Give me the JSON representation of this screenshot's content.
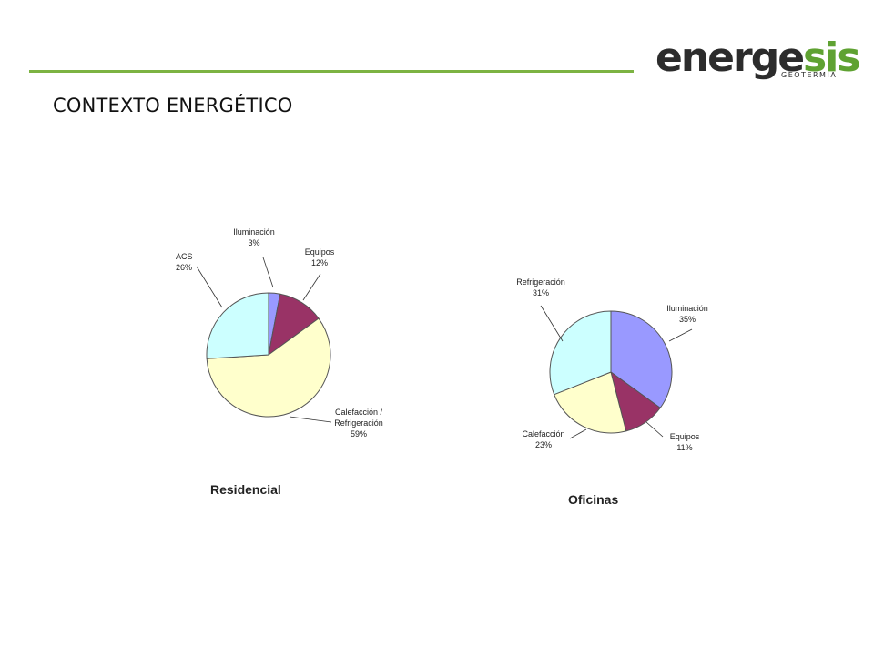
{
  "header": {
    "title": "CONTEXTO ENERGÉTICO",
    "logo": {
      "word_dark": "energe",
      "word_green": "sis",
      "subtitle": "GEOTERMIA",
      "colors": {
        "dark": "#2c2c2c",
        "green": "#5fa232"
      }
    },
    "rule_color": "#7cb342"
  },
  "chart_data": [
    {
      "type": "pie",
      "title": "Residencial",
      "slices": [
        {
          "label": "Iluminación",
          "value": 3,
          "value_label": "3%",
          "color": "#9999ff"
        },
        {
          "label": "Equipos",
          "value": 12,
          "value_label": "12%",
          "color": "#993366"
        },
        {
          "label": "Calefacción /\nRefrigeración",
          "value": 59,
          "value_label": "59%",
          "color": "#ffffcc"
        },
        {
          "label": "ACS",
          "value": 26,
          "value_label": "26%",
          "color": "#ccffff"
        }
      ],
      "legend": "none",
      "labels": "outside-with-leader-lines"
    },
    {
      "type": "pie",
      "title": "Oficinas",
      "slices": [
        {
          "label": "Iluminación",
          "value": 35,
          "value_label": "35%",
          "color": "#9999ff"
        },
        {
          "label": "Equipos",
          "value": 11,
          "value_label": "11%",
          "color": "#993366"
        },
        {
          "label": "Calefacción",
          "value": 23,
          "value_label": "23%",
          "color": "#ffffcc"
        },
        {
          "label": "Refrigeración",
          "value": 31,
          "value_label": "31%",
          "color": "#ccffff"
        }
      ],
      "legend": "none",
      "labels": "outside-with-leader-lines"
    }
  ]
}
